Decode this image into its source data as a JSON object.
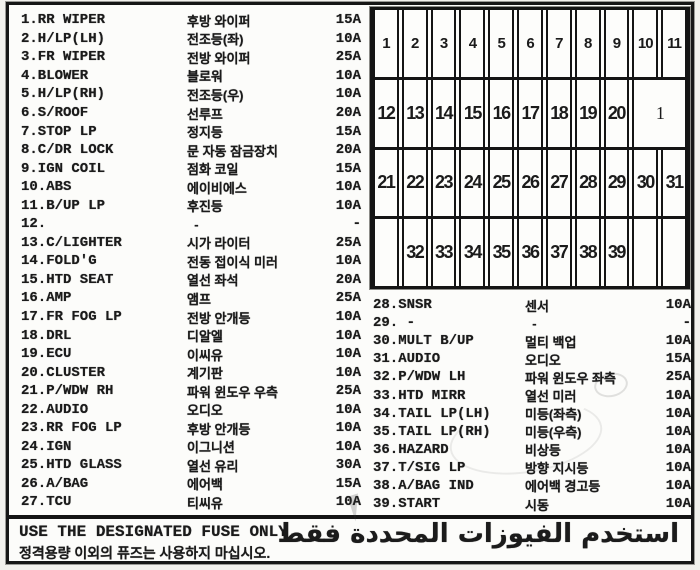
{
  "colors": {
    "ink": "#1b1b1b",
    "paper": "#fcfcfa"
  },
  "left_fuses": [
    {
      "label": "1.RR WIPER",
      "kr": "후방 와이퍼",
      "amp": "15A"
    },
    {
      "label": "2.H/LP(LH)",
      "kr": "전조등(좌)",
      "amp": "10A"
    },
    {
      "label": "3.FR WIPER",
      "kr": "전방 와이퍼",
      "amp": "25A"
    },
    {
      "label": "4.BLOWER",
      "kr": "블로워",
      "amp": "10A"
    },
    {
      "label": "5.H/LP(RH)",
      "kr": "전조등(우)",
      "amp": "10A"
    },
    {
      "label": "6.S/ROOF",
      "kr": "선루프",
      "amp": "20A"
    },
    {
      "label": "7.STOP LP",
      "kr": "정지등",
      "amp": "15A"
    },
    {
      "label": "8.C/DR LOCK",
      "kr": "문 자동 잠금장치",
      "amp": "20A"
    },
    {
      "label": "9.IGN COIL",
      "kr": "점화 코일",
      "amp": "15A"
    },
    {
      "label": "10.ABS",
      "kr": "에이비에스",
      "amp": "10A"
    },
    {
      "label": "11.B/UP LP",
      "kr": "후진등",
      "amp": "10A"
    },
    {
      "label": "12.",
      "kr": "  -",
      "amp": "-"
    },
    {
      "label": "13.C/LIGHTER",
      "kr": "시가 라이터",
      "amp": "25A"
    },
    {
      "label": "14.FOLD'G",
      "kr": "전동 접이식 미러",
      "amp": "10A"
    },
    {
      "label": "15.HTD SEAT",
      "kr": "열선 좌석",
      "amp": "20A"
    },
    {
      "label": "16.AMP",
      "kr": "앰프",
      "amp": "25A"
    },
    {
      "label": "17.FR FOG LP",
      "kr": "전방 안개등",
      "amp": "10A"
    },
    {
      "label": "18.DRL",
      "kr": "디알엘",
      "amp": "10A"
    },
    {
      "label": "19.ECU",
      "kr": "이씨유",
      "amp": "10A"
    },
    {
      "label": "20.CLUSTER",
      "kr": "계기판",
      "amp": "10A"
    },
    {
      "label": "21.P/WDW RH",
      "kr": "파워 윈도우 우측",
      "amp": "25A"
    },
    {
      "label": "22.AUDIO",
      "kr": "오디오",
      "amp": "10A"
    },
    {
      "label": "23.RR FOG LP",
      "kr": "후방 안개등",
      "amp": "10A"
    },
    {
      "label": "24.IGN",
      "kr": "이그니션",
      "amp": "10A"
    },
    {
      "label": "25.HTD GLASS",
      "kr": "열선 유리",
      "amp": "30A"
    },
    {
      "label": "26.A/BAG",
      "kr": "에어백",
      "amp": "15A"
    },
    {
      "label": "27.TCU",
      "kr": "티씨유",
      "amp": "10A"
    }
  ],
  "right_fuses": [
    {
      "label": "28.SNSR",
      "kr": "센서",
      "amp": "10A"
    },
    {
      "label": "29. -",
      "kr": "  -",
      "amp": "-"
    },
    {
      "label": "30.MULT B/UP",
      "kr": "멀티 백업",
      "amp": "10A"
    },
    {
      "label": "31.AUDIO",
      "kr": "오디오",
      "amp": "15A"
    },
    {
      "label": "32.P/WDW LH",
      "kr": "파워 윈도우 좌측",
      "amp": "25A"
    },
    {
      "label": "33.HTD MIRR",
      "kr": "열선 미러",
      "amp": "10A"
    },
    {
      "label": "34.TAIL LP(LH)",
      "kr": "미등(좌측)",
      "amp": "10A"
    },
    {
      "label": "35.TAIL LP(RH)",
      "kr": "미등(우측)",
      "amp": "10A"
    },
    {
      "label": "36.HAZARD",
      "kr": "비상등",
      "amp": "10A"
    },
    {
      "label": "37.T/SIG LP",
      "kr": "방향 지시등",
      "amp": "10A"
    },
    {
      "label": "38.A/BAG IND",
      "kr": "에어백 경고등",
      "amp": "10A"
    },
    {
      "label": "39.START",
      "kr": "시동",
      "amp": "10A"
    }
  ],
  "grid": {
    "rows": [
      {
        "cells": [
          "1",
          "2",
          "3",
          "4",
          "5",
          "6",
          "7",
          "8",
          "9",
          "10",
          "11"
        ]
      },
      {
        "cells": [
          "12",
          "13",
          "14",
          "15",
          "16",
          "17",
          "18",
          "19",
          "20"
        ],
        "big": "1"
      },
      {
        "cells": [
          "21",
          "22",
          "23",
          "24",
          "25",
          "26",
          "27",
          "28",
          "29",
          "30",
          "31"
        ]
      },
      {
        "cells": [
          "",
          "32",
          "33",
          "34",
          "35",
          "36",
          "37",
          "38",
          "39",
          "",
          ""
        ]
      }
    ]
  },
  "footer": {
    "english": "USE THE DESIGNATED FUSE ONLY.",
    "korean": "정격용량 이외의 퓨즈는 사용하지 마십시오.",
    "arabic": "استخدم الفيوزات المحددة فقط"
  }
}
